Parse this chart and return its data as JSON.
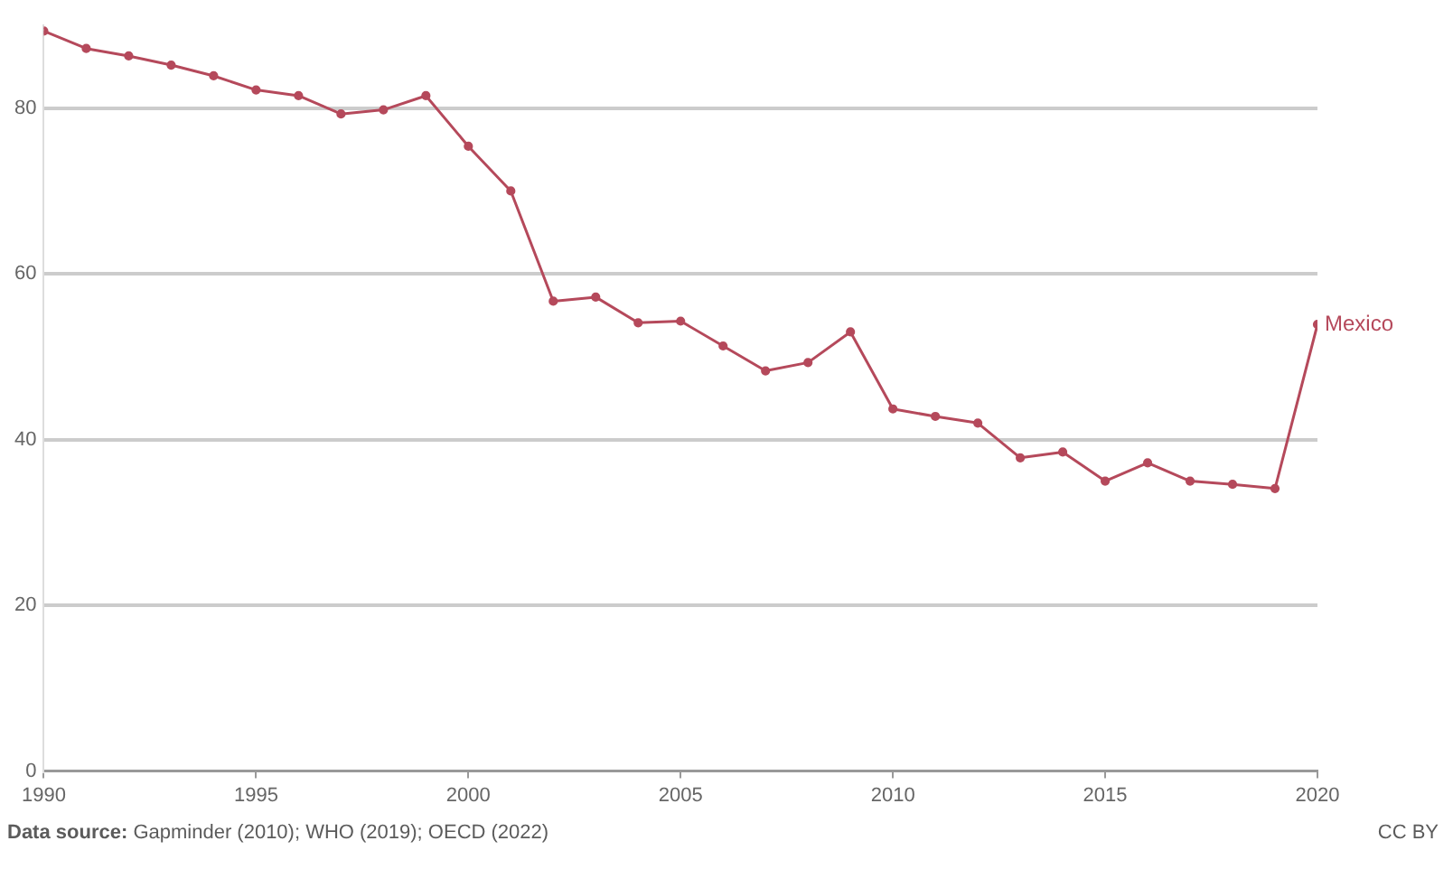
{
  "chart_data": {
    "type": "line",
    "x": [
      1990,
      1991,
      1992,
      1993,
      1994,
      1995,
      1996,
      1997,
      1998,
      1999,
      2000,
      2001,
      2002,
      2003,
      2004,
      2005,
      2006,
      2007,
      2008,
      2009,
      2010,
      2011,
      2012,
      2013,
      2014,
      2015,
      2016,
      2017,
      2018,
      2019,
      2020
    ],
    "series": [
      {
        "name": "Mexico",
        "color": "#b5495b",
        "values": [
          89.3,
          87.2,
          86.3,
          85.2,
          83.9,
          82.2,
          81.5,
          79.3,
          79.8,
          81.5,
          75.4,
          70,
          56.7,
          57.2,
          54.1,
          54.3,
          51.3,
          48.3,
          49.3,
          53,
          43.7,
          42.8,
          42,
          37.8,
          38.5,
          35,
          37.2,
          35,
          34.6,
          34.1,
          53.9
        ]
      }
    ],
    "xlim": [
      1990,
      2020
    ],
    "xticks": [
      1990,
      1995,
      2000,
      2005,
      2010,
      2015,
      2020
    ],
    "ylim": [
      0,
      90
    ],
    "yticks": [
      0,
      20,
      40,
      60,
      80
    ],
    "grid": "y",
    "legend": false,
    "marker": "circle",
    "line_style": "solid",
    "annotations": [
      "Data source: Gapminder (2010); WHO (2019); OECD (2022)",
      "CC BY"
    ]
  }
}
